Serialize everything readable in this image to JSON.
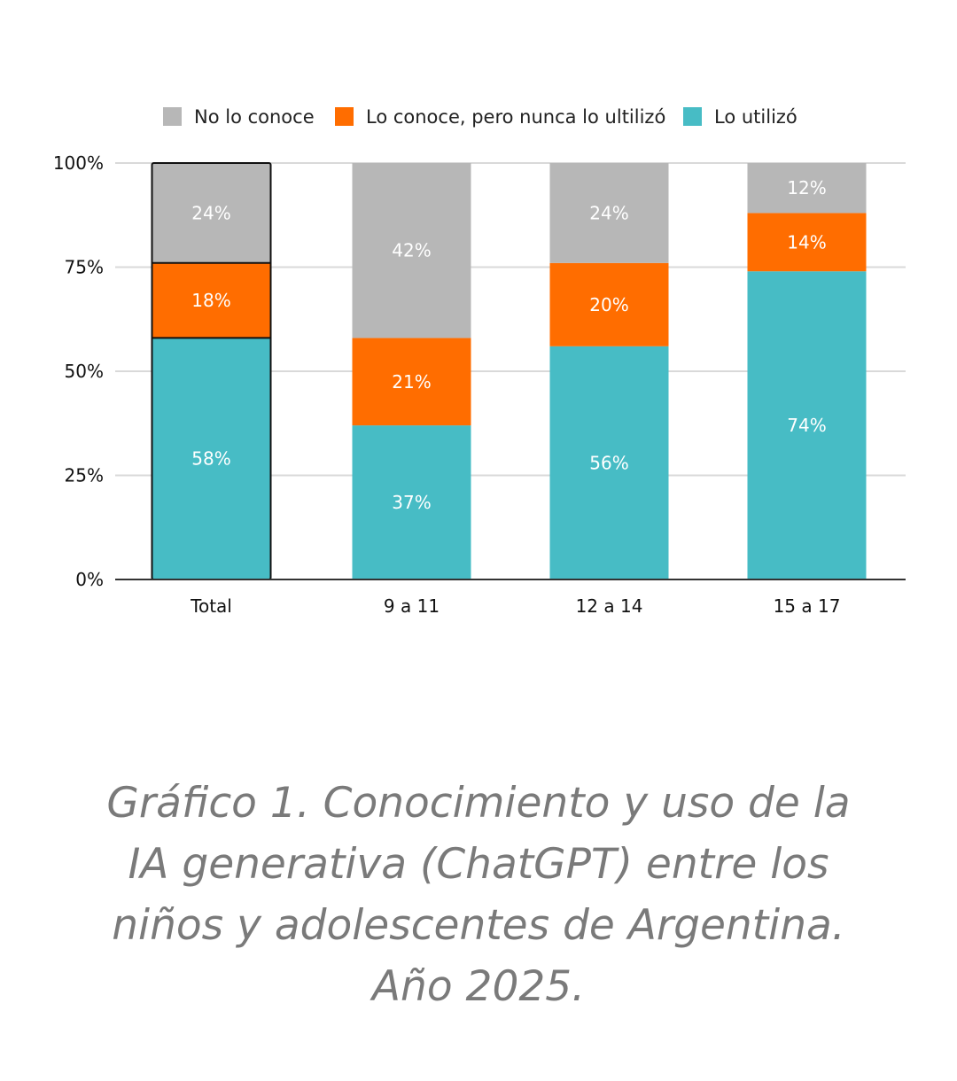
{
  "chart_data": {
    "type": "bar",
    "stacked": true,
    "categories": [
      "Total",
      "9 a 11",
      "12 a 14",
      "15 a 17"
    ],
    "series": [
      {
        "name": "Lo utilizó",
        "color": "#47BCC5",
        "values": [
          58,
          37,
          56,
          74
        ],
        "labels": [
          "58%",
          "37%",
          "56%",
          "74%"
        ]
      },
      {
        "name": "Lo conoce, pero nunca lo ultilizó",
        "color": "#FF6D00",
        "values": [
          18,
          21,
          20,
          14
        ],
        "labels": [
          "18%",
          "21%",
          "20%",
          "14%"
        ]
      },
      {
        "name": "No lo conoce",
        "color": "#B7B7B7",
        "values": [
          24,
          42,
          24,
          12
        ],
        "labels": [
          "24%",
          "42%",
          "24%",
          "12%"
        ]
      }
    ],
    "legend_order": [
      "No lo conoce",
      "Lo conoce, pero nunca lo ultilizó",
      "Lo utilizó"
    ],
    "yticks": [
      {
        "value": 0,
        "label": "0%"
      },
      {
        "value": 25,
        "label": "25%"
      },
      {
        "value": 50,
        "label": "50%"
      },
      {
        "value": 75,
        "label": "75%"
      },
      {
        "value": 100,
        "label": "100%"
      }
    ],
    "ylim": [
      0,
      100
    ],
    "highlighted_category": "Total",
    "grid": true,
    "legend_position": "top",
    "xlabel": "",
    "ylabel": ""
  },
  "caption": "Gráfico 1. Conocimiento y uso de la IA generativa (ChatGPT) entre los niños y adolescentes de Argentina. Año 2025."
}
